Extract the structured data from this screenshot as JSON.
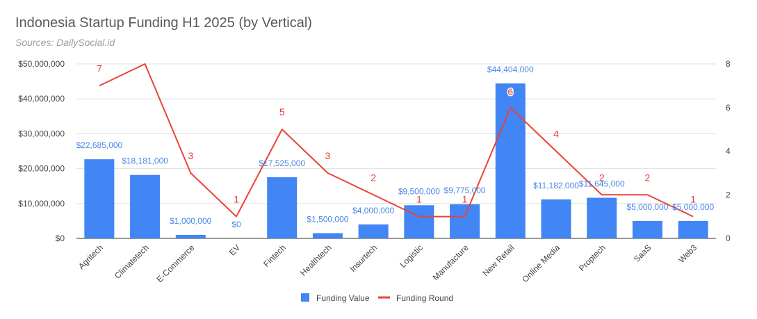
{
  "chart_data": {
    "type": "bar",
    "title": "Indonesia Startup Funding H1 2025 (by Vertical)",
    "subtitle": "Sources: DailySocial.id",
    "categories": [
      "Agritech",
      "Climatetech",
      "E-Commerce",
      "EV",
      "Fintech",
      "Healthtech",
      "Insurtech",
      "Logistic",
      "Manufacture",
      "New Retail",
      "Online Media",
      "Proptech",
      "SaaS",
      "Web3"
    ],
    "series": [
      {
        "name": "Funding Value",
        "type": "bar",
        "axis": "left",
        "color": "#4285f4",
        "values": [
          22685000,
          18181000,
          1000000,
          0,
          17525000,
          1500000,
          4000000,
          9500000,
          9775000,
          44404000,
          11182000,
          11645000,
          5000000,
          5000000
        ],
        "labels": [
          "$22,685,000",
          "$18,181,000",
          "$1,000,000",
          "$0",
          "$17,525,000",
          "$1,500,000",
          "$4,000,000",
          "$9,500,000",
          "$9,775,000",
          "$44,404,000",
          "$11,182,000",
          "$11,645,000",
          "$5,000,000",
          "$5,000,000"
        ]
      },
      {
        "name": "Funding Round",
        "type": "line",
        "axis": "right",
        "color": "#ea4335",
        "values": [
          7,
          8,
          3,
          1,
          5,
          3,
          2,
          1,
          1,
          6,
          4,
          2,
          2,
          1
        ],
        "labels": [
          "7",
          "",
          "3",
          "1",
          "5",
          "3",
          "2",
          "1",
          "1",
          "6",
          "4",
          "2",
          "2",
          "1"
        ]
      }
    ],
    "y_left": {
      "range": [
        0,
        50000000
      ],
      "ticks": [
        {
          "v": 0,
          "label": "$0"
        },
        {
          "v": 10000000,
          "label": "$10,000,000"
        },
        {
          "v": 20000000,
          "label": "$20,000,000"
        },
        {
          "v": 30000000,
          "label": "$30,000,000"
        },
        {
          "v": 40000000,
          "label": "$40,000,000"
        },
        {
          "v": 50000000,
          "label": "$50,000,000"
        }
      ]
    },
    "y_right": {
      "range": [
        0,
        8
      ],
      "ticks": [
        {
          "v": 0,
          "label": "0"
        },
        {
          "v": 2,
          "label": "2"
        },
        {
          "v": 4,
          "label": "4"
        },
        {
          "v": 6,
          "label": "6"
        },
        {
          "v": 8,
          "label": "8"
        }
      ]
    },
    "grid": true,
    "legend": "bottom",
    "colors": {
      "grid": "#e0e0e0",
      "axis_text": "#444444",
      "bar_label": "#4a86e8",
      "line_label": "#e53935"
    }
  }
}
